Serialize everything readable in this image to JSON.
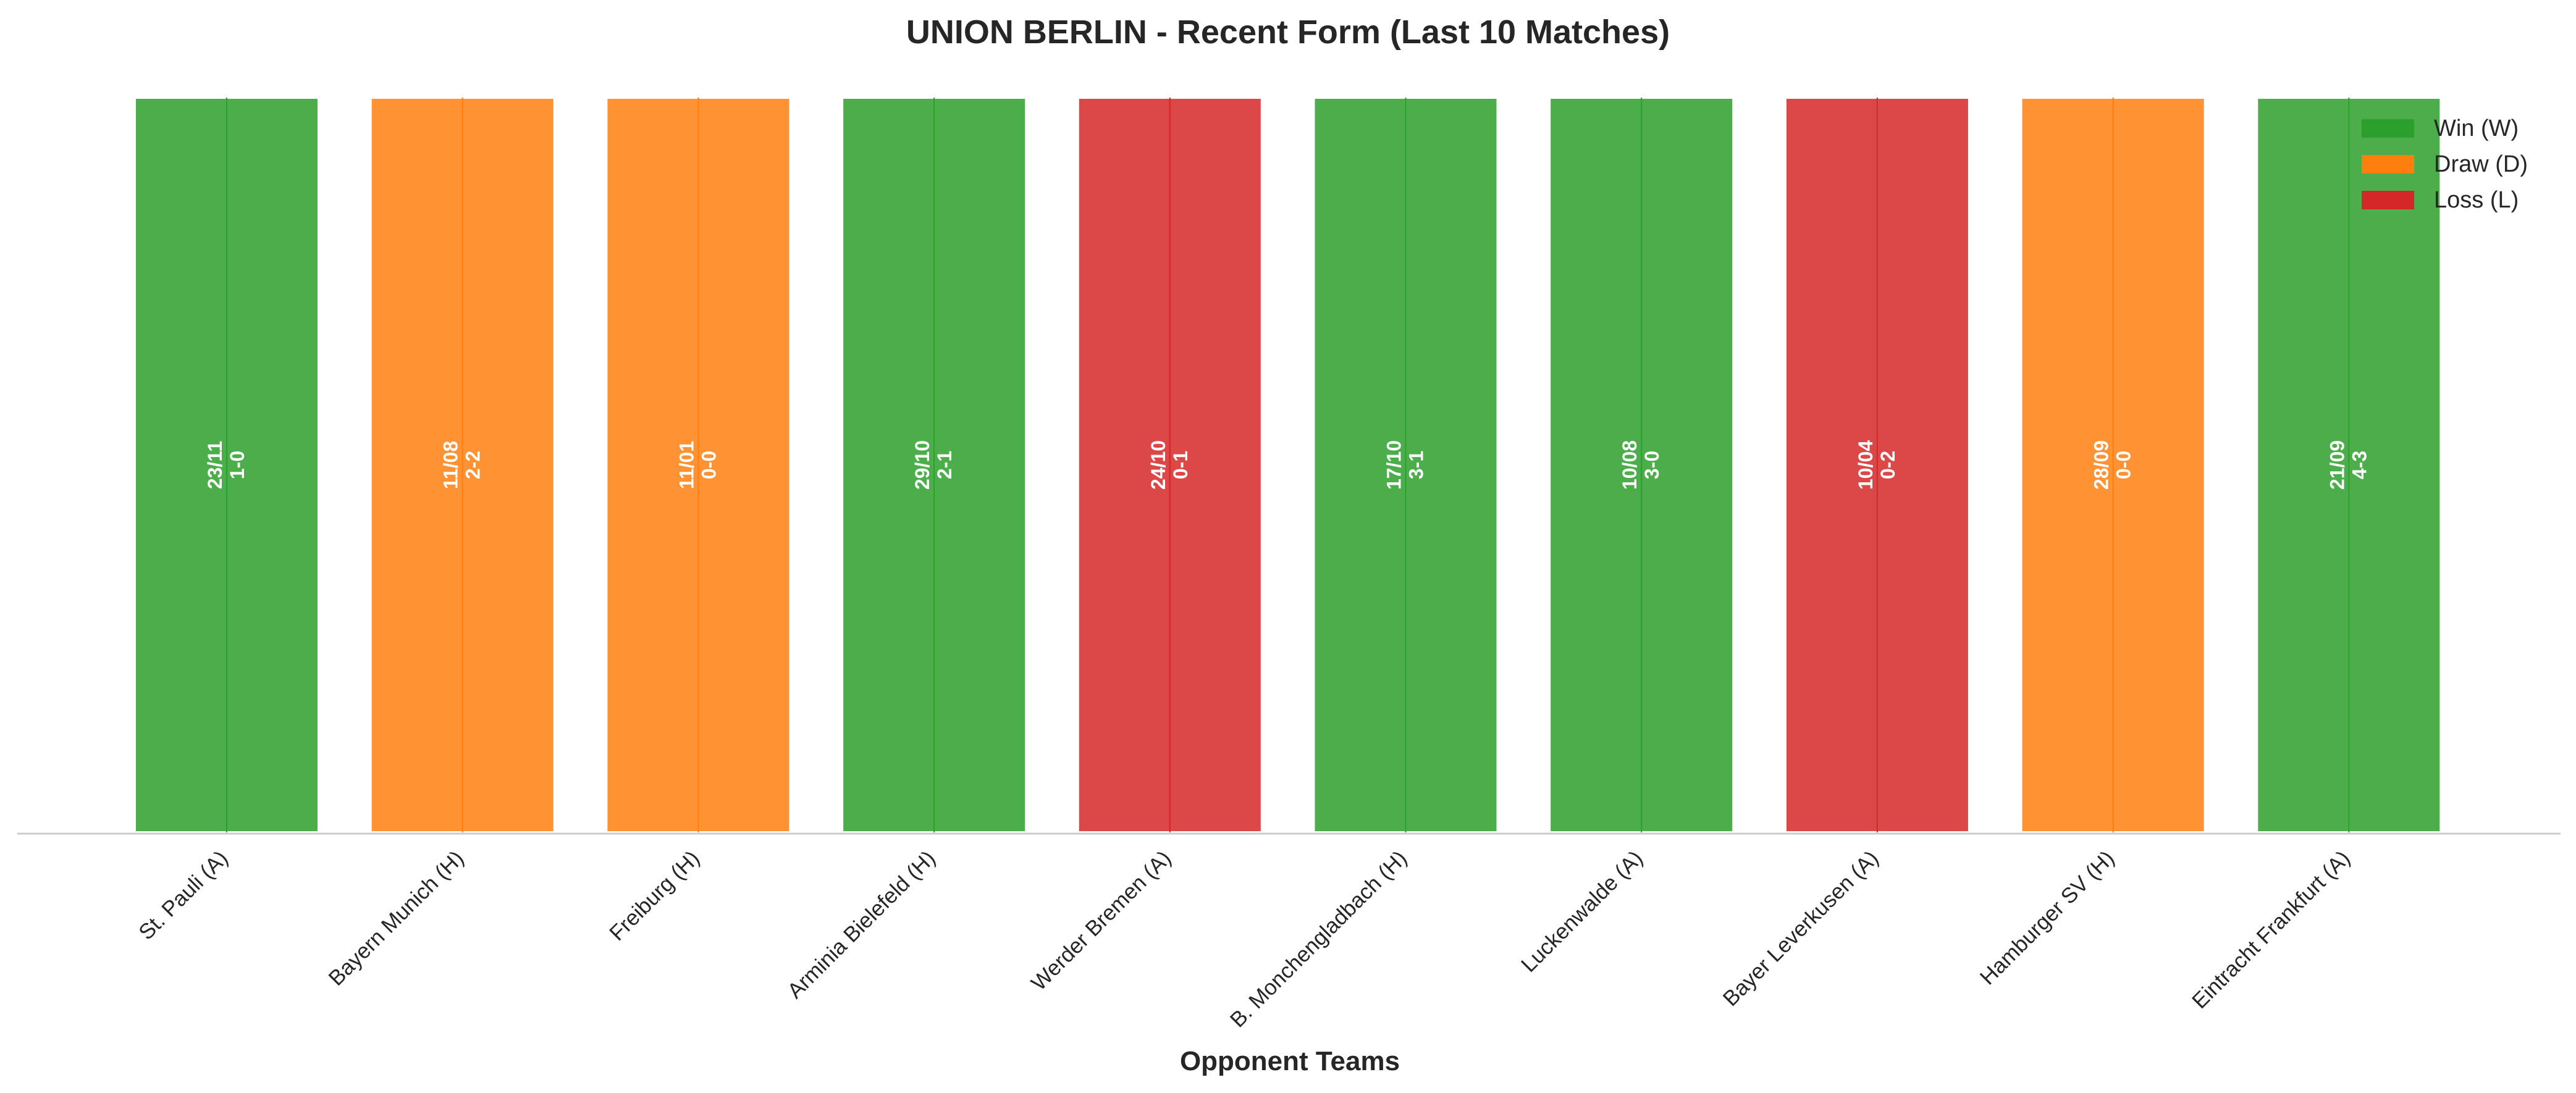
{
  "chart_data": {
    "type": "bar",
    "title": "UNION BERLIN - Recent Form (Last 10 Matches)",
    "xlabel": "Opponent Teams",
    "ylabel": "",
    "ylim": [
      0,
      1
    ],
    "grid": false,
    "legend_placement": "top-right",
    "categories": [
      "St. Pauli (A)",
      "Bayern Munich (H)",
      "Freiburg (H)",
      "Arminia Bielefeld (H)",
      "Werder Bremen (A)",
      "B. Monchengladbach (H)",
      "Luckenwalde (A)",
      "Bayer Leverkusen (A)",
      "Hamburger SV (H)",
      "Eintracht Frankfurt (A)"
    ],
    "values": [
      1,
      1,
      1,
      1,
      1,
      1,
      1,
      1,
      1,
      1
    ],
    "results": [
      "W",
      "D",
      "D",
      "W",
      "L",
      "W",
      "W",
      "L",
      "D",
      "W"
    ],
    "dates": [
      "23/11",
      "11/08",
      "11/01",
      "29/10",
      "24/10",
      "17/10",
      "10/08",
      "10/04",
      "28/09",
      "21/09"
    ],
    "scores": [
      "1-0",
      "2-2",
      "0-0",
      "2-1",
      "0-1",
      "3-1",
      "3-0",
      "0-2",
      "0-0",
      "4-3"
    ],
    "legend": [
      {
        "key": "W",
        "label": "Win (W)",
        "color": "#2ca02c"
      },
      {
        "key": "D",
        "label": "Draw (D)",
        "color": "#ff7f0e"
      },
      {
        "key": "L",
        "label": "Loss (L)",
        "color": "#d62728"
      }
    ]
  }
}
